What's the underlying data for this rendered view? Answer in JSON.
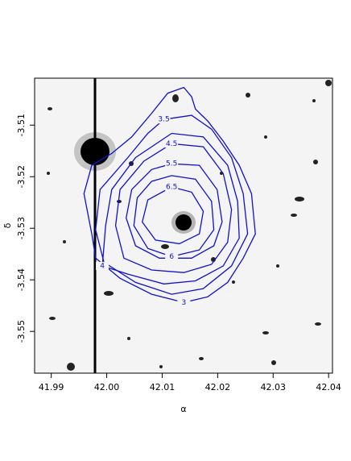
{
  "chart_data": {
    "type": "contour",
    "xlabel": "α",
    "ylabel": "δ",
    "xlim": [
      41.987,
      42.0407
    ],
    "ylim": [
      -3.5581,
      -3.5009
    ],
    "xticks": [
      41.99,
      {
        "value": 42,
        "label": "42.00"
      },
      42.01,
      42.02,
      42.03,
      42.04
    ],
    "yticks": [
      -3.51,
      -3.52,
      -3.53,
      -3.54,
      -3.55
    ],
    "color": "#1010d0",
    "contours": [
      {
        "level": 3,
        "x": [
          42.0139,
          42.0081,
          42.0024,
          41.998,
          41.9973,
          41.9959,
          41.9973,
          42.0009,
          42.0045,
          42.0081,
          42.011,
          42.0139,
          42.0153,
          42.016,
          42.0182,
          42.021,
          42.0239,
          42.0261,
          42.0268,
          42.0246,
          42.0218,
          42.0182
        ],
        "y": [
          -3.5444,
          -3.5428,
          -3.5397,
          -3.5358,
          -3.5311,
          -3.5233,
          -3.5178,
          -3.5155,
          -3.5123,
          -3.5077,
          -3.5038,
          -3.5027,
          -3.5045,
          -3.5069,
          -3.5092,
          -3.5131,
          -3.5178,
          -3.5233,
          -3.5311,
          -3.5358,
          -3.5405,
          -3.5433
        ]
      },
      {
        "level": 3.5,
        "x": [
          42.0103,
          42.0153,
          42.0189,
          42.0225,
          42.0246,
          42.0254,
          42.0225,
          42.0174,
          42.0117,
          42.0052,
          41.9995,
          41.998,
          41.9988,
          42.0038,
          42.0074
        ],
        "y": [
          -3.5089,
          -3.5081,
          -3.5108,
          -3.5163,
          -3.5233,
          -3.5311,
          -3.5373,
          -3.5417,
          -3.5428,
          -3.5405,
          -3.5366,
          -3.5303,
          -3.5225,
          -3.5163,
          -3.5116
        ]
      },
      {
        "level": 4,
        "x": [
          41.9992,
          41.9998,
          42.0009,
          42.0052,
          42.0117,
          42.0174,
          42.0218,
          42.0236,
          42.0239,
          42.021,
          42.016,
          42.0103,
          42.0038
        ],
        "y": [
          -3.5373,
          -3.5295,
          -3.5225,
          -3.5163,
          -3.5116,
          -3.5123,
          -3.5178,
          -3.5248,
          -3.5319,
          -3.5373,
          -3.5402,
          -3.5408,
          -3.5389
        ]
      },
      {
        "level": 4.5,
        "x": [
          42.0117,
          42.0174,
          42.021,
          42.0225,
          42.0218,
          42.0189,
          42.0139,
          42.0081,
          42.0031,
          42.0016,
          42.0024,
          42.0067
        ],
        "y": [
          -3.5136,
          -3.5142,
          -3.5194,
          -3.5264,
          -3.5327,
          -3.537,
          -3.5386,
          -3.5381,
          -3.5358,
          -3.5295,
          -3.5225,
          -3.517
        ]
      },
      {
        "level": 5.5,
        "x": [
          42.0117,
          42.0167,
          42.0199,
          42.0208,
          42.0193,
          42.0153,
          42.0095,
          42.0052,
          42.0035,
          42.0045,
          42.0081
        ],
        "y": [
          -3.5175,
          -3.5178,
          -3.5225,
          -3.5288,
          -3.5334,
          -3.5358,
          -3.5358,
          -3.5334,
          -3.528,
          -3.5225,
          -3.5186
        ]
      },
      {
        "level": 6,
        "x": [
          42.0117,
          42.0074,
          42.0049,
          42.0055,
          42.0081,
          42.0117,
          42.016,
          42.0189,
          42.0193,
          42.0167
        ],
        "y": [
          -3.5355,
          -3.5339,
          -3.5295,
          -3.5241,
          -3.5209,
          -3.5198,
          -3.5205,
          -3.5248,
          -3.5303,
          -3.5342
        ]
      },
      {
        "level": 6.5,
        "x": [
          42.0117,
          42.0153,
          42.0174,
          42.0167,
          42.0131,
          42.0088,
          42.0064,
          42.0074
        ],
        "y": [
          -3.522,
          -3.523,
          -3.5267,
          -3.5311,
          -3.533,
          -3.5323,
          -3.5288,
          -3.5245
        ]
      }
    ]
  }
}
